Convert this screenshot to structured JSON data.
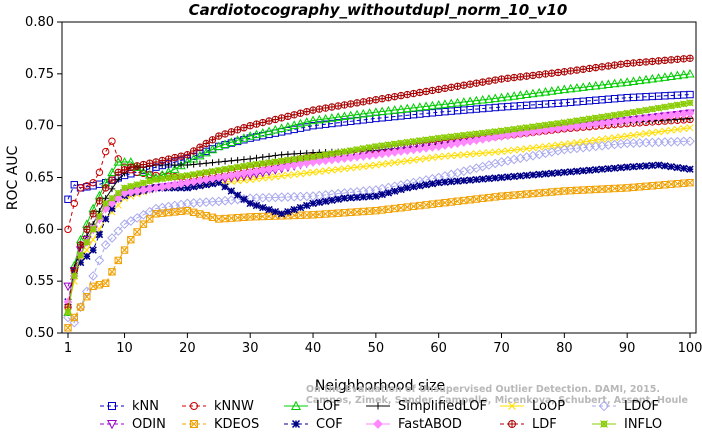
{
  "chart_data": {
    "type": "line",
    "title": "Cardiotocography_withoutdupl_norm_10_v10",
    "xlabel": "Neighborhood size",
    "ylabel": "ROC AUC",
    "xlim": [
      1,
      100
    ],
    "ylim": [
      0.5,
      0.8
    ],
    "xticks": [
      1,
      10,
      20,
      30,
      40,
      50,
      60,
      70,
      80,
      90,
      100
    ],
    "yticks": [
      0.5,
      0.55,
      0.6,
      0.65,
      0.7,
      0.75,
      0.8
    ],
    "xtick_labels": [
      "1",
      "10",
      "20",
      "30",
      "40",
      "50",
      "60",
      "70",
      "80",
      "90",
      "100"
    ],
    "ytick_labels": [
      "0.50",
      "0.55",
      "0.60",
      "0.65",
      "0.70",
      "0.75",
      "0.80"
    ],
    "grid": false,
    "legend_position": "bottom",
    "watermark": [
      "Campos, Zimek, Sander, Campello, Micenkova, Schubert, Assent, Houle",
      "On the Evaluation of Unsupervised Outlier Detection. DAMI, 2015."
    ],
    "series": [
      {
        "name": "kNN",
        "color": "#0000cc",
        "marker": "square",
        "dash": "4,3",
        "points": [
          [
            1,
            0.629
          ],
          [
            2,
            0.643
          ],
          [
            3,
            0.64
          ],
          [
            5,
            0.642
          ],
          [
            7,
            0.645
          ],
          [
            10,
            0.652
          ],
          [
            15,
            0.66
          ],
          [
            20,
            0.668
          ],
          [
            25,
            0.68
          ],
          [
            30,
            0.688
          ],
          [
            40,
            0.7
          ],
          [
            50,
            0.707
          ],
          [
            60,
            0.713
          ],
          [
            70,
            0.718
          ],
          [
            80,
            0.722
          ],
          [
            90,
            0.727
          ],
          [
            100,
            0.73
          ]
        ]
      },
      {
        "name": "kNNW",
        "color": "#cc0000",
        "marker": "circle",
        "dash": "4,3",
        "points": [
          [
            1,
            0.6
          ],
          [
            2,
            0.625
          ],
          [
            3,
            0.64
          ],
          [
            4,
            0.642
          ],
          [
            5,
            0.645
          ],
          [
            6,
            0.655
          ],
          [
            7,
            0.675
          ],
          [
            8,
            0.685
          ],
          [
            9,
            0.668
          ],
          [
            10,
            0.66
          ],
          [
            12,
            0.655
          ],
          [
            15,
            0.652
          ],
          [
            20,
            0.65
          ],
          [
            25,
            0.655
          ],
          [
            30,
            0.66
          ],
          [
            40,
            0.67
          ],
          [
            50,
            0.676
          ],
          [
            60,
            0.682
          ],
          [
            70,
            0.69
          ],
          [
            80,
            0.697
          ],
          [
            90,
            0.702
          ],
          [
            100,
            0.706
          ]
        ]
      },
      {
        "name": "LOF",
        "color": "#00cc00",
        "marker": "triangle-up",
        "dash": "",
        "points": [
          [
            1,
            0.52
          ],
          [
            2,
            0.565
          ],
          [
            3,
            0.59
          ],
          [
            5,
            0.62
          ],
          [
            7,
            0.645
          ],
          [
            9,
            0.665
          ],
          [
            11,
            0.665
          ],
          [
            13,
            0.655
          ],
          [
            15,
            0.65
          ],
          [
            18,
            0.658
          ],
          [
            20,
            0.665
          ],
          [
            25,
            0.68
          ],
          [
            30,
            0.69
          ],
          [
            40,
            0.705
          ],
          [
            50,
            0.713
          ],
          [
            60,
            0.72
          ],
          [
            70,
            0.727
          ],
          [
            80,
            0.735
          ],
          [
            90,
            0.742
          ],
          [
            100,
            0.75
          ]
        ]
      },
      {
        "name": "SimplifiedLOF",
        "color": "#000000",
        "marker": "plus",
        "dash": "",
        "points": [
          [
            1,
            0.525
          ],
          [
            2,
            0.563
          ],
          [
            3,
            0.582
          ],
          [
            5,
            0.605
          ],
          [
            7,
            0.63
          ],
          [
            9,
            0.648
          ],
          [
            11,
            0.66
          ],
          [
            13,
            0.66
          ],
          [
            15,
            0.662
          ],
          [
            20,
            0.662
          ],
          [
            25,
            0.665
          ],
          [
            30,
            0.668
          ],
          [
            35,
            0.672
          ],
          [
            40,
            0.674
          ],
          [
            50,
            0.676
          ],
          [
            60,
            0.682
          ],
          [
            70,
            0.69
          ],
          [
            80,
            0.697
          ],
          [
            90,
            0.703
          ],
          [
            100,
            0.707
          ]
        ]
      },
      {
        "name": "LoOP",
        "color": "#ffdd00",
        "marker": "x",
        "dash": "",
        "points": [
          [
            1,
            0.525
          ],
          [
            2,
            0.55
          ],
          [
            3,
            0.57
          ],
          [
            5,
            0.59
          ],
          [
            7,
            0.61
          ],
          [
            10,
            0.63
          ],
          [
            15,
            0.64
          ],
          [
            20,
            0.643
          ],
          [
            25,
            0.645
          ],
          [
            30,
            0.648
          ],
          [
            40,
            0.655
          ],
          [
            50,
            0.662
          ],
          [
            60,
            0.67
          ],
          [
            70,
            0.675
          ],
          [
            80,
            0.682
          ],
          [
            90,
            0.69
          ],
          [
            100,
            0.698
          ]
        ]
      },
      {
        "name": "LDOF",
        "color": "#aaaaee",
        "marker": "diamond",
        "dash": "4,3",
        "points": [
          [
            1,
            0.515
          ],
          [
            2,
            0.51
          ],
          [
            3,
            0.525
          ],
          [
            5,
            0.555
          ],
          [
            7,
            0.585
          ],
          [
            10,
            0.605
          ],
          [
            15,
            0.62
          ],
          [
            20,
            0.625
          ],
          [
            25,
            0.627
          ],
          [
            30,
            0.63
          ],
          [
            40,
            0.632
          ],
          [
            50,
            0.638
          ],
          [
            60,
            0.65
          ],
          [
            70,
            0.665
          ],
          [
            80,
            0.677
          ],
          [
            90,
            0.683
          ],
          [
            100,
            0.685
          ]
        ]
      },
      {
        "name": "ODIN",
        "color": "#9900cc",
        "marker": "triangle-down",
        "dash": "4,3",
        "points": [
          [
            1,
            0.545
          ],
          [
            2,
            0.56
          ],
          [
            3,
            0.58
          ],
          [
            5,
            0.6
          ],
          [
            7,
            0.62
          ],
          [
            10,
            0.635
          ],
          [
            15,
            0.64
          ],
          [
            20,
            0.643
          ],
          [
            25,
            0.648
          ],
          [
            30,
            0.652
          ],
          [
            40,
            0.665
          ],
          [
            50,
            0.675
          ],
          [
            60,
            0.683
          ],
          [
            70,
            0.69
          ],
          [
            80,
            0.698
          ],
          [
            90,
            0.705
          ],
          [
            100,
            0.712
          ]
        ]
      },
      {
        "name": "KDEOS",
        "color": "#f0a000",
        "marker": "square-x",
        "dash": "4,3",
        "points": [
          [
            1,
            0.505
          ],
          [
            2,
            0.515
          ],
          [
            3,
            0.525
          ],
          [
            4,
            0.535
          ],
          [
            5,
            0.545
          ],
          [
            7,
            0.548
          ],
          [
            9,
            0.57
          ],
          [
            11,
            0.59
          ],
          [
            13,
            0.605
          ],
          [
            15,
            0.615
          ],
          [
            20,
            0.618
          ],
          [
            25,
            0.61
          ],
          [
            30,
            0.612
          ],
          [
            40,
            0.614
          ],
          [
            50,
            0.618
          ],
          [
            60,
            0.625
          ],
          [
            70,
            0.632
          ],
          [
            80,
            0.637
          ],
          [
            90,
            0.64
          ],
          [
            100,
            0.645
          ]
        ]
      },
      {
        "name": "COF",
        "color": "#000088",
        "marker": "asterisk",
        "dash": "4,3",
        "points": [
          [
            1,
            0.53
          ],
          [
            2,
            0.56
          ],
          [
            3,
            0.568
          ],
          [
            5,
            0.58
          ],
          [
            7,
            0.61
          ],
          [
            9,
            0.63
          ],
          [
            11,
            0.635
          ],
          [
            15,
            0.64
          ],
          [
            20,
            0.64
          ],
          [
            25,
            0.645
          ],
          [
            30,
            0.625
          ],
          [
            35,
            0.615
          ],
          [
            40,
            0.625
          ],
          [
            45,
            0.63
          ],
          [
            50,
            0.632
          ],
          [
            55,
            0.64
          ],
          [
            60,
            0.645
          ],
          [
            70,
            0.65
          ],
          [
            80,
            0.655
          ],
          [
            90,
            0.66
          ],
          [
            95,
            0.662
          ],
          [
            100,
            0.658
          ]
        ]
      },
      {
        "name": "FastABOD",
        "color": "#ff88ff",
        "marker": "diamond-filled",
        "dash": "",
        "points": [
          [
            1,
            0.53
          ],
          [
            2,
            0.555
          ],
          [
            3,
            0.575
          ],
          [
            5,
            0.6
          ],
          [
            7,
            0.62
          ],
          [
            10,
            0.635
          ],
          [
            15,
            0.64
          ],
          [
            20,
            0.645
          ],
          [
            25,
            0.65
          ],
          [
            30,
            0.655
          ],
          [
            40,
            0.665
          ],
          [
            50,
            0.672
          ],
          [
            60,
            0.68
          ],
          [
            70,
            0.69
          ],
          [
            80,
            0.698
          ],
          [
            90,
            0.705
          ],
          [
            100,
            0.712
          ]
        ]
      },
      {
        "name": "LDF",
        "color": "#aa0000",
        "marker": "circle-plus",
        "dash": "4,3",
        "points": [
          [
            1,
            0.525
          ],
          [
            2,
            0.56
          ],
          [
            3,
            0.585
          ],
          [
            5,
            0.615
          ],
          [
            7,
            0.64
          ],
          [
            9,
            0.655
          ],
          [
            11,
            0.66
          ],
          [
            15,
            0.665
          ],
          [
            20,
            0.672
          ],
          [
            25,
            0.69
          ],
          [
            30,
            0.7
          ],
          [
            40,
            0.715
          ],
          [
            50,
            0.725
          ],
          [
            60,
            0.735
          ],
          [
            70,
            0.745
          ],
          [
            80,
            0.752
          ],
          [
            90,
            0.76
          ],
          [
            100,
            0.765
          ]
        ]
      },
      {
        "name": "INFLO",
        "color": "#88cc00",
        "marker": "star",
        "dash": "",
        "points": [
          [
            1,
            0.52
          ],
          [
            2,
            0.555
          ],
          [
            3,
            0.575
          ],
          [
            5,
            0.6
          ],
          [
            7,
            0.625
          ],
          [
            10,
            0.64
          ],
          [
            15,
            0.648
          ],
          [
            20,
            0.652
          ],
          [
            25,
            0.657
          ],
          [
            30,
            0.662
          ],
          [
            40,
            0.67
          ],
          [
            50,
            0.68
          ],
          [
            60,
            0.688
          ],
          [
            70,
            0.695
          ],
          [
            80,
            0.703
          ],
          [
            90,
            0.712
          ],
          [
            100,
            0.722
          ]
        ]
      }
    ]
  }
}
